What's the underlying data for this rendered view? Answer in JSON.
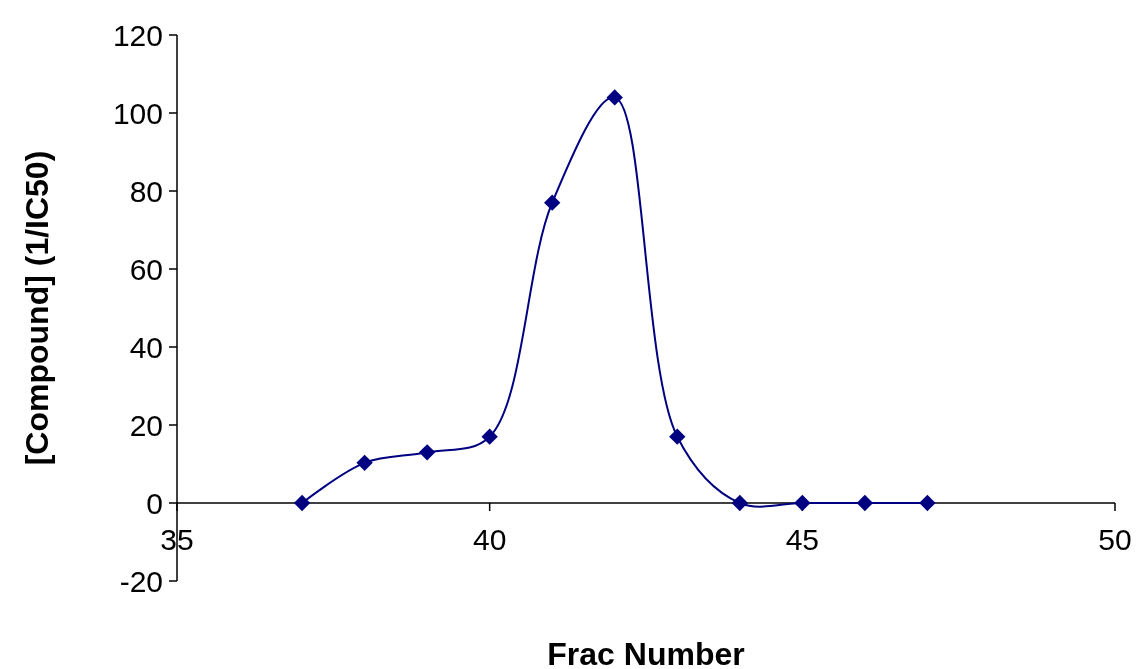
{
  "chart_data": {
    "type": "line",
    "xlabel": "Frac Number",
    "ylabel": "[Compound] (1/IC50)",
    "x": [
      37,
      38,
      39,
      40,
      41,
      42,
      43,
      44,
      45,
      46,
      47
    ],
    "series": [
      {
        "color": "#000080",
        "values": [
          0,
          10.3,
          13,
          17,
          77,
          104,
          17,
          0,
          0,
          0,
          0
        ]
      }
    ],
    "xlim": [
      35,
      50
    ],
    "ylim": [
      -20,
      120
    ],
    "xticks": [
      35,
      40,
      45,
      50
    ],
    "yticks": [
      -20,
      0,
      20,
      40,
      60,
      80,
      100,
      120
    ],
    "marker": "diamond",
    "line_style": "solid"
  }
}
